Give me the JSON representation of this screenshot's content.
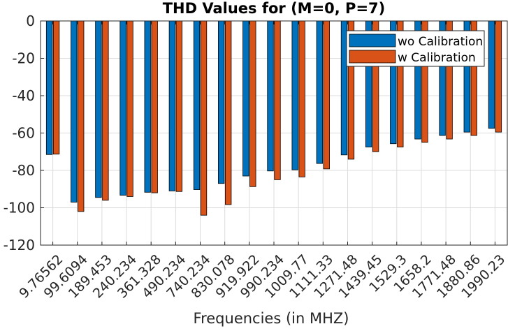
{
  "chart_data": {
    "type": "bar",
    "title": "THD Values for (M=0, P=7)",
    "xlabel": "Frequencies (in MHZ)",
    "ylabel": "",
    "ylim": [
      -120,
      0
    ],
    "yticks": [
      0,
      -20,
      -40,
      -60,
      -80,
      -100,
      -120
    ],
    "grid": true,
    "legend_position": "top-right",
    "categories": [
      "9.76562",
      "99.6094",
      "189.453",
      "240.234",
      "361.328",
      "490.234",
      "740.234",
      "830.078",
      "919.922",
      "990.234",
      "1009.77",
      "1111.33",
      "1271.48",
      "1439.45",
      "1529.3",
      "1658.2",
      "1771.48",
      "1880.86",
      "1990.23"
    ],
    "series": [
      {
        "name": "wo Calibration",
        "color": "#0072bd",
        "values": [
          -71.5,
          -97,
          -94.5,
          -93.3,
          -91.7,
          -91,
          -90.3,
          -87,
          -83,
          -80.3,
          -79.7,
          -76.3,
          -71.7,
          -67.5,
          -65.7,
          -63.2,
          -61.3,
          -59.5,
          -57.5
        ]
      },
      {
        "name": "w Calibration",
        "color": "#d95319",
        "values": [
          -71.3,
          -102,
          -96,
          -94,
          -92,
          -91.3,
          -104,
          -98.3,
          -88.7,
          -85,
          -83.5,
          -79.2,
          -74,
          -70,
          -67.5,
          -65,
          -63.2,
          -61.3,
          -59.5
        ]
      }
    ]
  }
}
